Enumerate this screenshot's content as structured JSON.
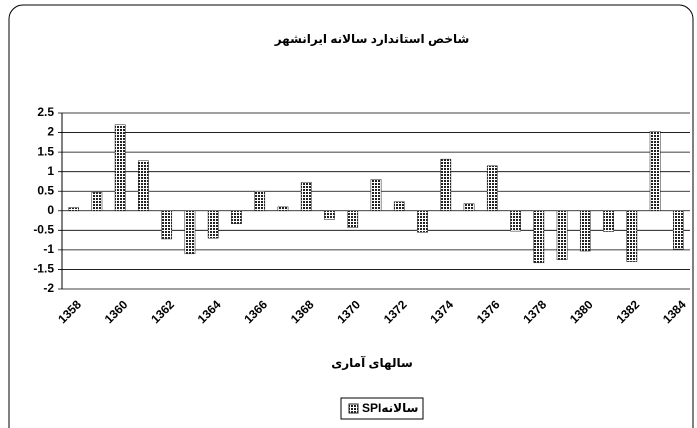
{
  "chart_data": {
    "type": "bar",
    "title": "شاخص استاندارد سالانه ایرانشهر",
    "x_label": "سالهای آماری",
    "categories": [
      "1358",
      null,
      "1360",
      null,
      "1362",
      null,
      "1364",
      null,
      "1366",
      null,
      "1368",
      null,
      "1370",
      null,
      "1372",
      null,
      "1374",
      null,
      "1376",
      null,
      "1378",
      null,
      "1380",
      null,
      "1382",
      null,
      "1384"
    ],
    "series": [
      {
        "name": "SPIسالانه",
        "color": "#222222",
        "values": [
          0.08,
          0.47,
          2.2,
          1.28,
          -0.72,
          -1.1,
          -0.7,
          -0.33,
          0.5,
          0.1,
          0.73,
          -0.22,
          -0.43,
          0.8,
          0.23,
          -0.55,
          1.32,
          0.18,
          1.15,
          -0.52,
          -1.33,
          -1.25,
          -1.03,
          -0.53,
          -1.3,
          2.03,
          -0.98
        ]
      }
    ],
    "ylim": [
      -2,
      2.5
    ],
    "yticks": [
      -2,
      -1.5,
      -1,
      -0.5,
      0,
      0.5,
      1,
      1.5,
      2,
      2.5
    ],
    "grid": true
  }
}
